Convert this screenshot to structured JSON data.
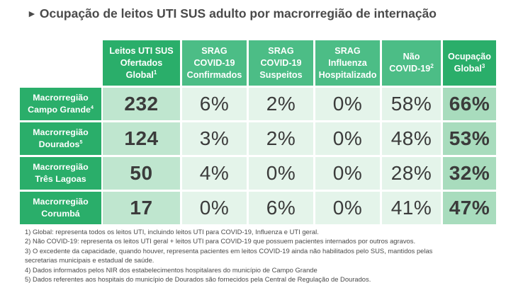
{
  "title": "Ocupação de leitos UTI SUS adulto por macrorregião de internação",
  "title_marker": "►",
  "colors": {
    "header_dark": "#2aae6a",
    "header_mid": "#4cbd86",
    "cell_light": "#e4f4ea",
    "cell_beds": "#bfe6cf",
    "cell_occupancy": "#a8dcbd"
  },
  "headers": [
    {
      "lines": [
        "Leitos UTI SUS",
        "Ofertados",
        "Global"
      ],
      "sup": "1"
    },
    {
      "lines": [
        "SRAG",
        "COVID-19",
        "Confirmados"
      ],
      "sup": ""
    },
    {
      "lines": [
        "SRAG",
        "COVID-19",
        "Suspeitos"
      ],
      "sup": ""
    },
    {
      "lines": [
        "SRAG",
        "Influenza",
        "Hospitalizado"
      ],
      "sup": ""
    },
    {
      "lines": [
        "Não",
        "COVID-19"
      ],
      "sup": "2"
    },
    {
      "lines": [
        "Ocupação",
        "Global"
      ],
      "sup": "3"
    }
  ],
  "rows": [
    {
      "line1": "Macrorregião",
      "line2": "Campo Grande",
      "sup": "4",
      "values": [
        "232",
        "6%",
        "2%",
        "0%",
        "58%",
        "66%"
      ]
    },
    {
      "line1": "Macrorregião",
      "line2": "Dourados",
      "sup": "5",
      "values": [
        "124",
        "3%",
        "2%",
        "0%",
        "48%",
        "53%"
      ]
    },
    {
      "line1": "Macrorregião",
      "line2": "Três Lagoas",
      "sup": "",
      "values": [
        "50",
        "4%",
        "0%",
        "0%",
        "28%",
        "32%"
      ]
    },
    {
      "line1": "Macrorregião",
      "line2": "Corumbá",
      "sup": "",
      "values": [
        "17",
        "0%",
        "6%",
        "0%",
        "41%",
        "47%"
      ]
    }
  ],
  "notes": [
    "1) Global: representa todos os leitos UTI, incluindo leitos UTI para COVID-19, Influenza e UTI geral.",
    "2) Não COVID-19: representa os leitos UTI geral + leitos UTI para COVID-19 que possuem pacientes internados por outros agravos.",
    "3) O excedente da capacidade, quando houver, representa pacientes em leitos COVID-19 ainda não habilitados pelo SUS, mantidos pelas",
    "secretarias municipais e estadual de saúde.",
    "4) Dados informados pelos NIR dos estabelecimentos hospitalares do município de Campo Grande",
    "5) Dados referentes aos hospitais do município de Dourados são fornecidos pela Central de Regulação de Dourados."
  ]
}
